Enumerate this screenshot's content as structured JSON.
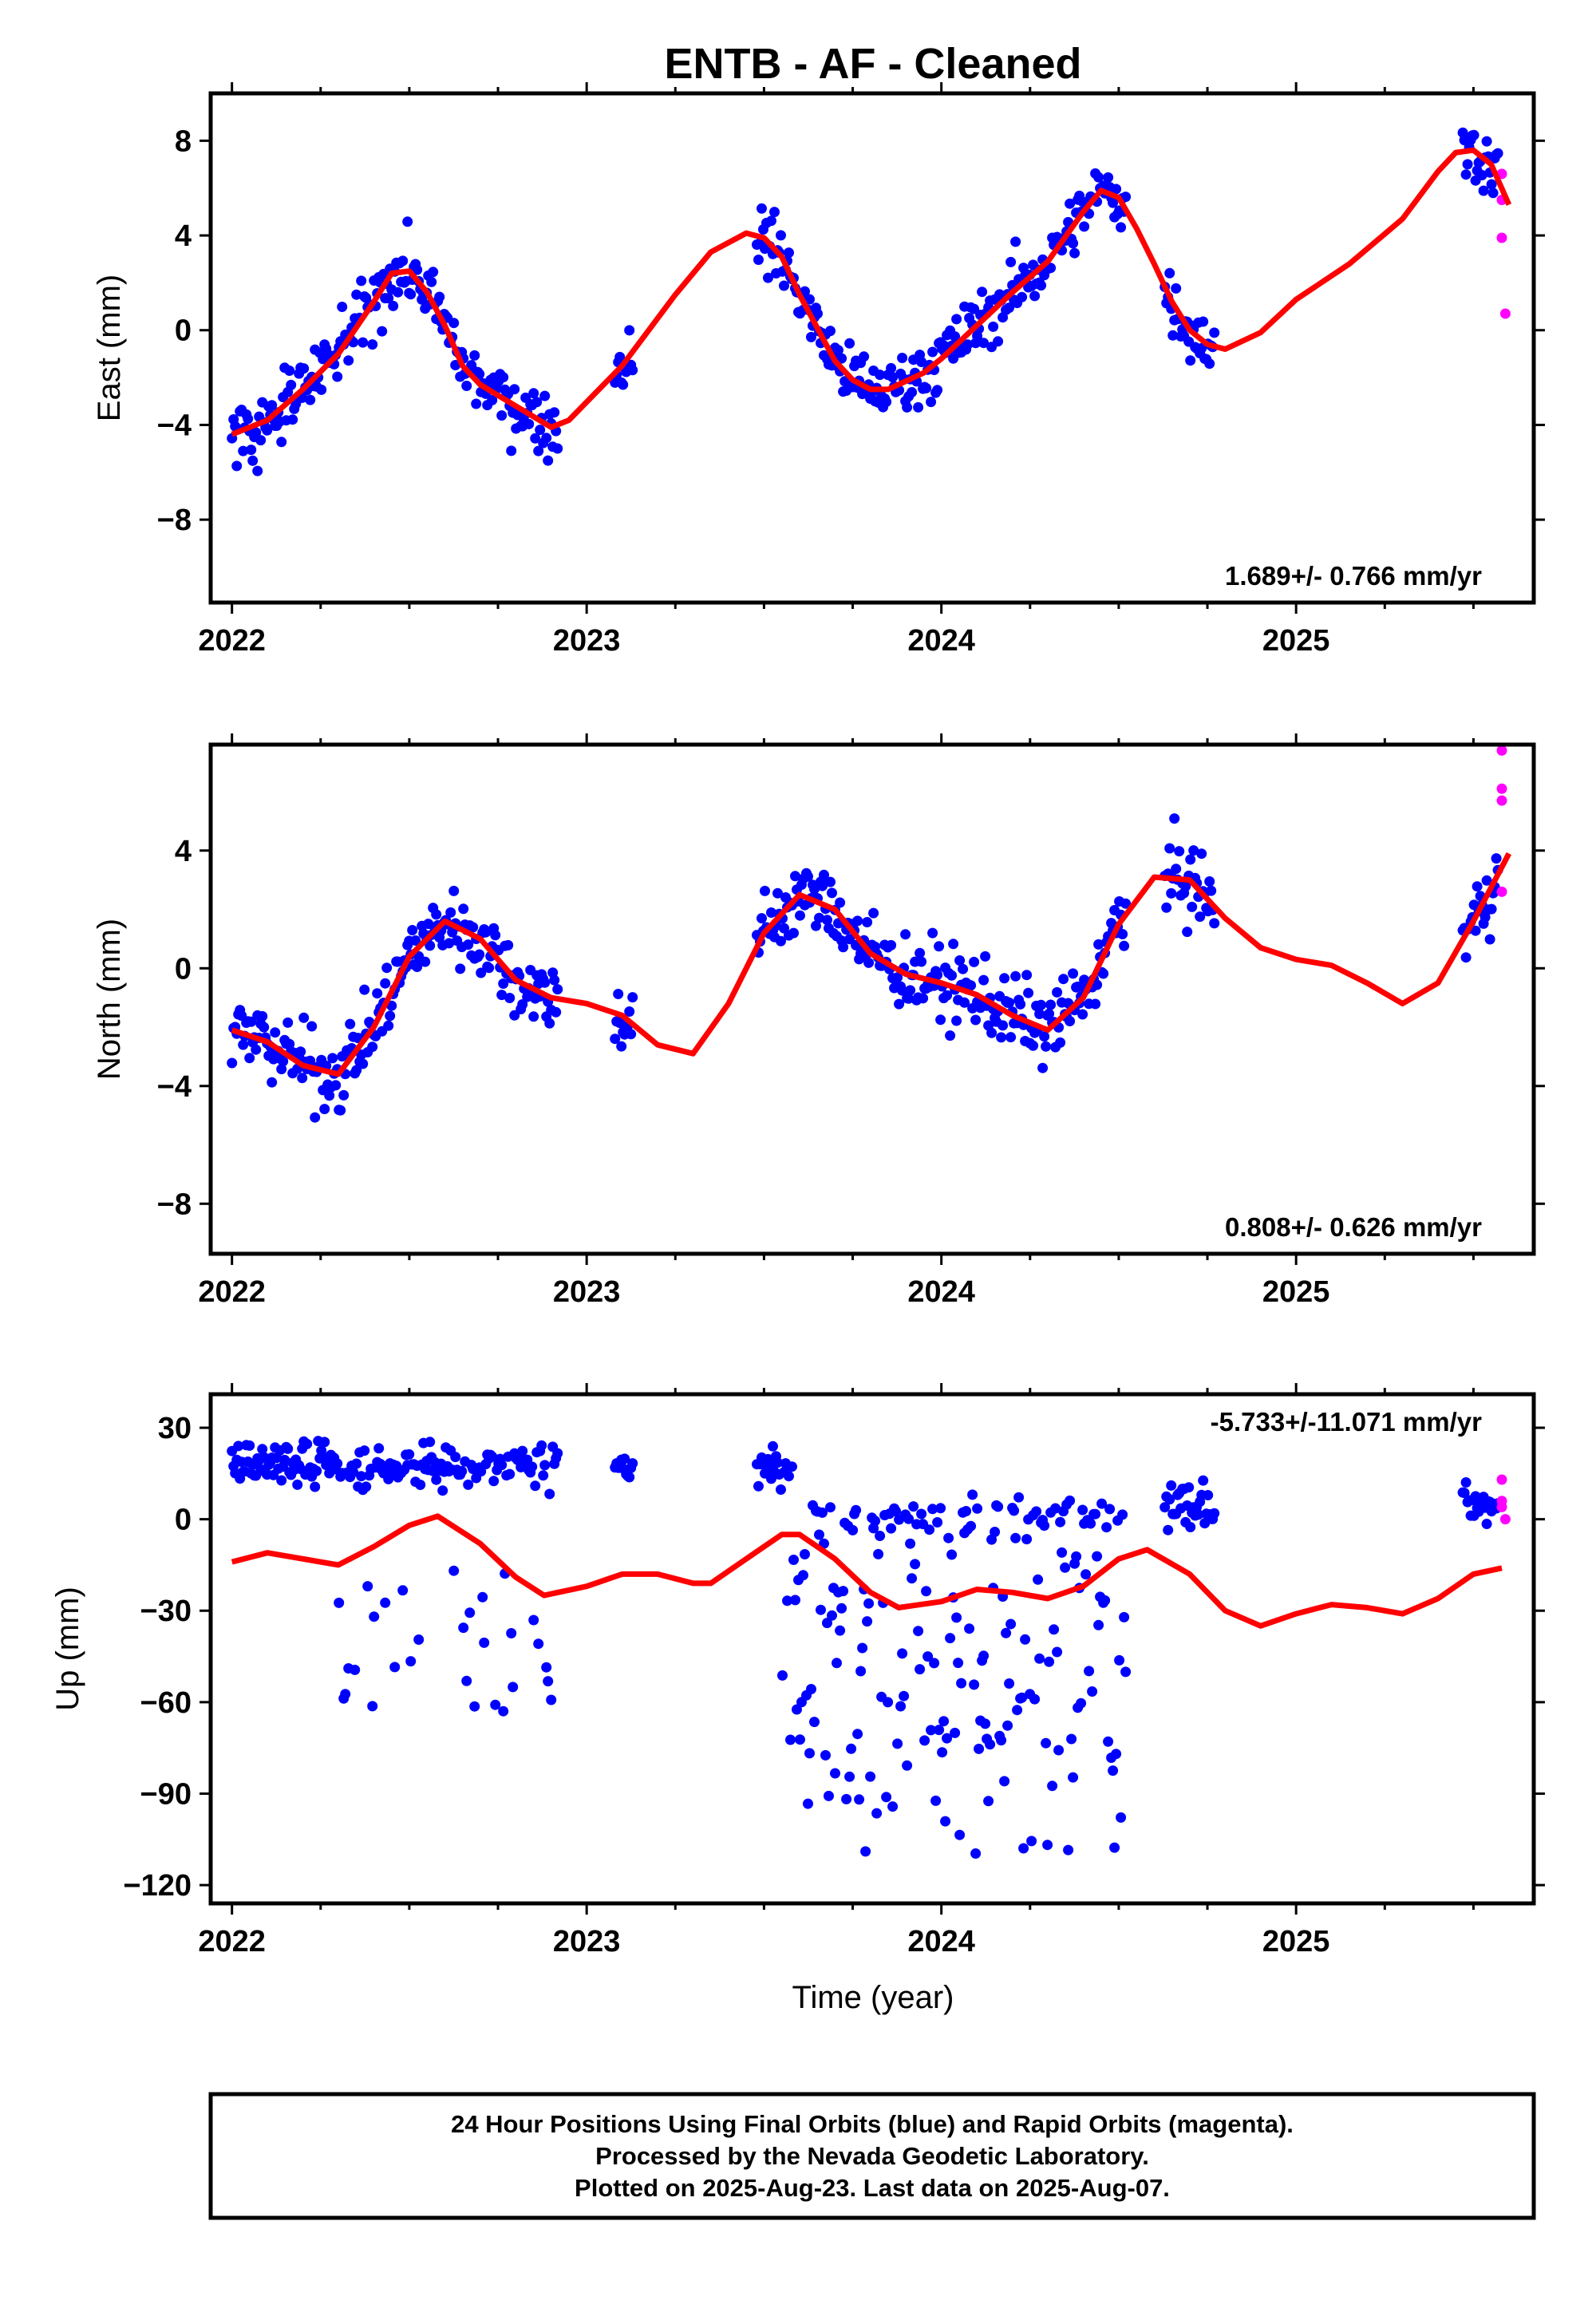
{
  "title": "ENTB  - AF - Cleaned",
  "footer": {
    "line1": "24 Hour Positions Using Final Orbits (blue) and Rapid Orbits (magenta).",
    "line2": "Processed by the Nevada Geodetic Laboratory.",
    "line3": "Plotted on 2025-Aug-23. Last data on 2025-Aug-07."
  },
  "colors": {
    "final": "#0000ff",
    "rapid": "#ff00ff",
    "model": "#ff0000",
    "frame": "#000000"
  },
  "chart_data": [
    {
      "type": "scatter",
      "name": "East",
      "ylabel": "East (mm)",
      "xlabel": "",
      "xlim": [
        2021.94,
        2025.67
      ],
      "ylim": [
        -11.5,
        10.0
      ],
      "xticks": [
        2022,
        2023,
        2024,
        2025
      ],
      "yticks": [
        8,
        4,
        0,
        -4,
        -8
      ],
      "rate": "1.689+/- 0.766 mm/yr",
      "rate_pos": "bottom-right",
      "model_curve": [
        [
          2022.0,
          -4.4
        ],
        [
          2022.1,
          -3.8
        ],
        [
          2022.2,
          -2.5
        ],
        [
          2022.3,
          -1.0
        ],
        [
          2022.4,
          1.2
        ],
        [
          2022.45,
          2.4
        ],
        [
          2022.5,
          2.5
        ],
        [
          2022.55,
          1.6
        ],
        [
          2022.6,
          0.2
        ],
        [
          2022.65,
          -1.5
        ],
        [
          2022.7,
          -2.3
        ],
        [
          2022.8,
          -3.2
        ],
        [
          2022.9,
          -4.1
        ],
        [
          2022.95,
          -3.8
        ],
        [
          2023.1,
          -1.5
        ],
        [
          2023.25,
          1.5
        ],
        [
          2023.35,
          3.3
        ],
        [
          2023.45,
          4.1
        ],
        [
          2023.5,
          3.9
        ],
        [
          2023.55,
          3.1
        ],
        [
          2023.6,
          1.5
        ],
        [
          2023.65,
          0.1
        ],
        [
          2023.7,
          -1.3
        ],
        [
          2023.75,
          -2.1
        ],
        [
          2023.8,
          -2.5
        ],
        [
          2023.85,
          -2.5
        ],
        [
          2023.95,
          -1.8
        ],
        [
          2024.0,
          -1.2
        ],
        [
          2024.1,
          0.2
        ],
        [
          2024.2,
          1.6
        ],
        [
          2024.3,
          2.9
        ],
        [
          2024.4,
          5.0
        ],
        [
          2024.45,
          5.9
        ],
        [
          2024.5,
          5.6
        ],
        [
          2024.55,
          4.3
        ],
        [
          2024.6,
          2.8
        ],
        [
          2024.65,
          1.2
        ],
        [
          2024.7,
          0.0
        ],
        [
          2024.75,
          -0.6
        ],
        [
          2024.8,
          -0.8
        ],
        [
          2024.9,
          -0.1
        ],
        [
          2025.0,
          1.3
        ],
        [
          2025.15,
          2.8
        ],
        [
          2025.3,
          4.7
        ],
        [
          2025.4,
          6.7
        ],
        [
          2025.45,
          7.5
        ],
        [
          2025.5,
          7.6
        ],
        [
          2025.55,
          7.0
        ],
        [
          2025.6,
          5.3
        ]
      ],
      "points_rapid": [
        [
          2025.58,
          6.6
        ],
        [
          2025.58,
          5.5
        ],
        [
          2025.58,
          3.9
        ],
        [
          2025.59,
          0.7
        ]
      ]
    },
    {
      "type": "scatter",
      "name": "North",
      "ylabel": "North (mm)",
      "xlabel": "",
      "xlim": [
        2021.94,
        2025.67
      ],
      "ylim": [
        -9.7,
        7.6
      ],
      "xticks": [
        2022,
        2023,
        2024,
        2025
      ],
      "yticks": [
        4,
        0,
        -4,
        -8
      ],
      "rate": "0.808+/- 0.626 mm/yr",
      "rate_pos": "bottom-right",
      "model_curve": [
        [
          2022.0,
          -2.1
        ],
        [
          2022.1,
          -2.5
        ],
        [
          2022.2,
          -3.3
        ],
        [
          2022.3,
          -3.6
        ],
        [
          2022.4,
          -2.0
        ],
        [
          2022.5,
          0.4
        ],
        [
          2022.6,
          1.6
        ],
        [
          2022.7,
          1.0
        ],
        [
          2022.8,
          -0.4
        ],
        [
          2022.9,
          -1.0
        ],
        [
          2023.0,
          -1.2
        ],
        [
          2023.1,
          -1.6
        ],
        [
          2023.2,
          -2.6
        ],
        [
          2023.3,
          -2.9
        ],
        [
          2023.4,
          -1.2
        ],
        [
          2023.5,
          1.2
        ],
        [
          2023.6,
          2.5
        ],
        [
          2023.7,
          2.0
        ],
        [
          2023.8,
          0.5
        ],
        [
          2023.9,
          -0.2
        ],
        [
          2024.0,
          -0.5
        ],
        [
          2024.1,
          -0.9
        ],
        [
          2024.2,
          -1.6
        ],
        [
          2024.3,
          -2.1
        ],
        [
          2024.4,
          -1.0
        ],
        [
          2024.5,
          1.5
        ],
        [
          2024.6,
          3.1
        ],
        [
          2024.7,
          3.0
        ],
        [
          2024.8,
          1.7
        ],
        [
          2024.9,
          0.7
        ],
        [
          2025.0,
          0.3
        ],
        [
          2025.1,
          0.1
        ],
        [
          2025.2,
          -0.5
        ],
        [
          2025.3,
          -1.2
        ],
        [
          2025.4,
          -0.5
        ],
        [
          2025.5,
          1.6
        ],
        [
          2025.6,
          3.9
        ]
      ],
      "points_rapid": [
        [
          2025.58,
          7.4
        ],
        [
          2025.58,
          6.1
        ],
        [
          2025.58,
          5.7
        ],
        [
          2025.58,
          2.6
        ]
      ]
    },
    {
      "type": "scatter",
      "name": "Up",
      "ylabel": "Up (mm)",
      "xlabel": "Time (year)",
      "xlim": [
        2021.94,
        2025.67
      ],
      "ylim": [
        -126,
        41
      ],
      "xticks": [
        2022,
        2023,
        2024,
        2025
      ],
      "yticks": [
        30,
        0,
        -30,
        -60,
        -90,
        -120
      ],
      "rate": "-5.733+/-11.071 mm/yr",
      "rate_pos": "top-right",
      "model_curve": [
        [
          2022.0,
          -14
        ],
        [
          2022.1,
          -11
        ],
        [
          2022.2,
          -13
        ],
        [
          2022.3,
          -15
        ],
        [
          2022.4,
          -9
        ],
        [
          2022.5,
          -2
        ],
        [
          2022.58,
          1
        ],
        [
          2022.7,
          -8
        ],
        [
          2022.8,
          -19
        ],
        [
          2022.88,
          -25
        ],
        [
          2023.0,
          -22
        ],
        [
          2023.1,
          -18
        ],
        [
          2023.2,
          -18
        ],
        [
          2023.3,
          -21
        ],
        [
          2023.35,
          -21
        ],
        [
          2023.45,
          -13
        ],
        [
          2023.55,
          -5
        ],
        [
          2023.6,
          -5
        ],
        [
          2023.7,
          -13
        ],
        [
          2023.8,
          -24
        ],
        [
          2023.88,
          -29
        ],
        [
          2024.0,
          -27
        ],
        [
          2024.1,
          -23
        ],
        [
          2024.2,
          -24
        ],
        [
          2024.3,
          -26
        ],
        [
          2024.4,
          -22
        ],
        [
          2024.5,
          -13
        ],
        [
          2024.58,
          -10
        ],
        [
          2024.7,
          -18
        ],
        [
          2024.8,
          -30
        ],
        [
          2024.9,
          -35
        ],
        [
          2025.0,
          -31
        ],
        [
          2025.1,
          -28
        ],
        [
          2025.2,
          -29
        ],
        [
          2025.3,
          -31
        ],
        [
          2025.4,
          -26
        ],
        [
          2025.5,
          -18
        ],
        [
          2025.58,
          -16
        ]
      ],
      "points_rapid": [
        [
          2025.58,
          13
        ],
        [
          2025.58,
          6
        ],
        [
          2025.59,
          0
        ],
        [
          2025.58,
          4
        ]
      ]
    }
  ]
}
